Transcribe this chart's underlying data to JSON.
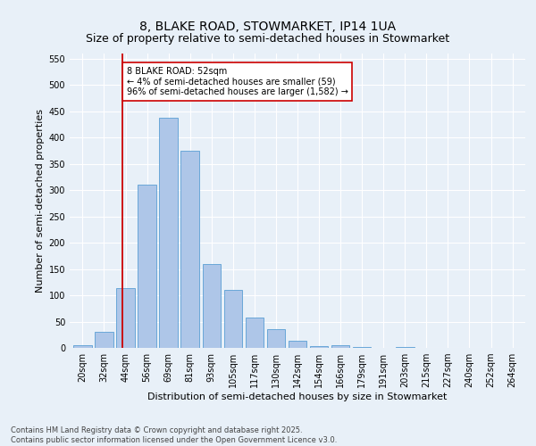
{
  "title": "8, BLAKE ROAD, STOWMARKET, IP14 1UA",
  "subtitle": "Size of property relative to semi-detached houses in Stowmarket",
  "xlabel": "Distribution of semi-detached houses by size in Stowmarket",
  "ylabel": "Number of semi-detached properties",
  "footnote1": "Contains HM Land Registry data © Crown copyright and database right 2025.",
  "footnote2": "Contains public sector information licensed under the Open Government Licence v3.0.",
  "bar_labels": [
    "20sqm",
    "32sqm",
    "44sqm",
    "56sqm",
    "69sqm",
    "81sqm",
    "93sqm",
    "105sqm",
    "117sqm",
    "130sqm",
    "142sqm",
    "154sqm",
    "166sqm",
    "179sqm",
    "191sqm",
    "203sqm",
    "215sqm",
    "227sqm",
    "240sqm",
    "252sqm",
    "264sqm"
  ],
  "bar_values": [
    5,
    30,
    113,
    310,
    438,
    375,
    160,
    110,
    57,
    35,
    14,
    3,
    5,
    1,
    0,
    1,
    0,
    0,
    0,
    0,
    0
  ],
  "bar_color": "#aec6e8",
  "bar_edge_color": "#5a9fd4",
  "vline_color": "#cc0000",
  "vline_x": 1.85,
  "annotation_text": "8 BLAKE ROAD: 52sqm\n← 4% of semi-detached houses are smaller (59)\n96% of semi-detached houses are larger (1,582) →",
  "annotation_box_color": "#ffffff",
  "annotation_box_edge_color": "#cc0000",
  "ylim": [
    0,
    560
  ],
  "yticks": [
    0,
    50,
    100,
    150,
    200,
    250,
    300,
    350,
    400,
    450,
    500,
    550
  ],
  "background_color": "#e8f0f8",
  "grid_color": "#ffffff",
  "title_fontsize": 10,
  "subtitle_fontsize": 9,
  "axis_label_fontsize": 8,
  "tick_fontsize": 7,
  "annotation_fontsize": 7,
  "footnote_fontsize": 6
}
